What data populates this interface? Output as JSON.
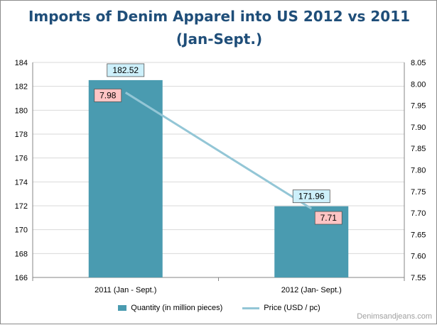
{
  "chart_data": {
    "type": "bar",
    "title_lines": [
      "Imports of Denim Apparel into US 2012 vs 2011",
      "(Jan-Sept.)"
    ],
    "categories": [
      "2011 (Jan - Sept.)",
      "2012 (Jan- Sept.)"
    ],
    "series": [
      {
        "name": "Quantity (in million pieces)",
        "type": "bar",
        "axis": "left",
        "values": [
          182.52,
          171.96
        ],
        "labels": [
          "182.52",
          "171.96"
        ],
        "color": "#4a9bb0",
        "label_bg": "#cdf0fb"
      },
      {
        "name": "Price (USD / pc)",
        "type": "line",
        "axis": "right",
        "values": [
          7.98,
          7.71
        ],
        "labels": [
          "7.98",
          "7.71"
        ],
        "color": "#93c6d6",
        "label_bg": "#ffc4c4"
      }
    ],
    "y_left": {
      "min": 166,
      "max": 184,
      "step": 2,
      "ticks": [
        "166",
        "168",
        "170",
        "172",
        "174",
        "176",
        "178",
        "180",
        "182",
        "184"
      ]
    },
    "y_right": {
      "min": 7.55,
      "max": 8.05,
      "step": 0.05,
      "ticks": [
        "7.55",
        "7.60",
        "7.65",
        "7.70",
        "7.75",
        "7.80",
        "7.85",
        "7.90",
        "7.95",
        "8.00",
        "8.05"
      ]
    },
    "grid": true,
    "legend": "bottom"
  },
  "watermark": "Denimsandjeans.com"
}
